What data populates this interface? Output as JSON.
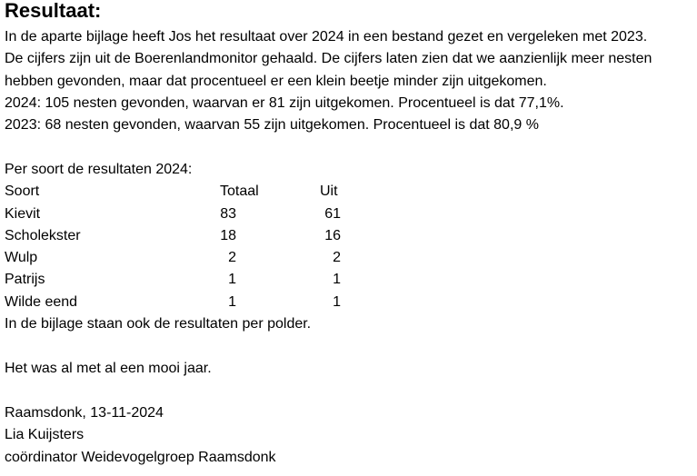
{
  "title": "Resultaat:",
  "paragraph": [
    "In de aparte bijlage heeft Jos het resultaat over 2024 in een bestand gezet en vergeleken met 2023.",
    "De cijfers zijn uit de Boerenlandmonitor gehaald. De cijfers laten zien dat we aanzienlijk meer nesten",
    "hebben gevonden, maar dat procentueel er een klein beetje minder zijn uitgekomen.",
    "2024:  105 nesten gevonden, waarvan er 81 zijn uitgekomen. Procentueel is dat 77,1%.",
    "2023: 68 nesten gevonden, waarvan 55 zijn uitgekomen. Procentueel is dat 80,9 %"
  ],
  "table": {
    "caption": "Per soort de resultaten 2024:",
    "headers": [
      "Soort",
      "Totaal",
      "Uit"
    ],
    "rows": [
      [
        "Kievit",
        "83",
        "61"
      ],
      [
        "Scholekster",
        "18",
        "16"
      ],
      [
        "Wulp",
        "2",
        "2"
      ],
      [
        "Patrijs",
        "1",
        "1"
      ],
      [
        "Wilde eend",
        "1",
        "1"
      ]
    ],
    "note": "In de bijlage staan ook de resultaten per polder."
  },
  "closing": "Het was al met al een mooi jaar.",
  "signature": {
    "place_date": "Raamsdonk, 13-11-2024",
    "name": "Lia Kuijsters",
    "role": "coördinator Weidevogelgroep Raamsdonk"
  }
}
